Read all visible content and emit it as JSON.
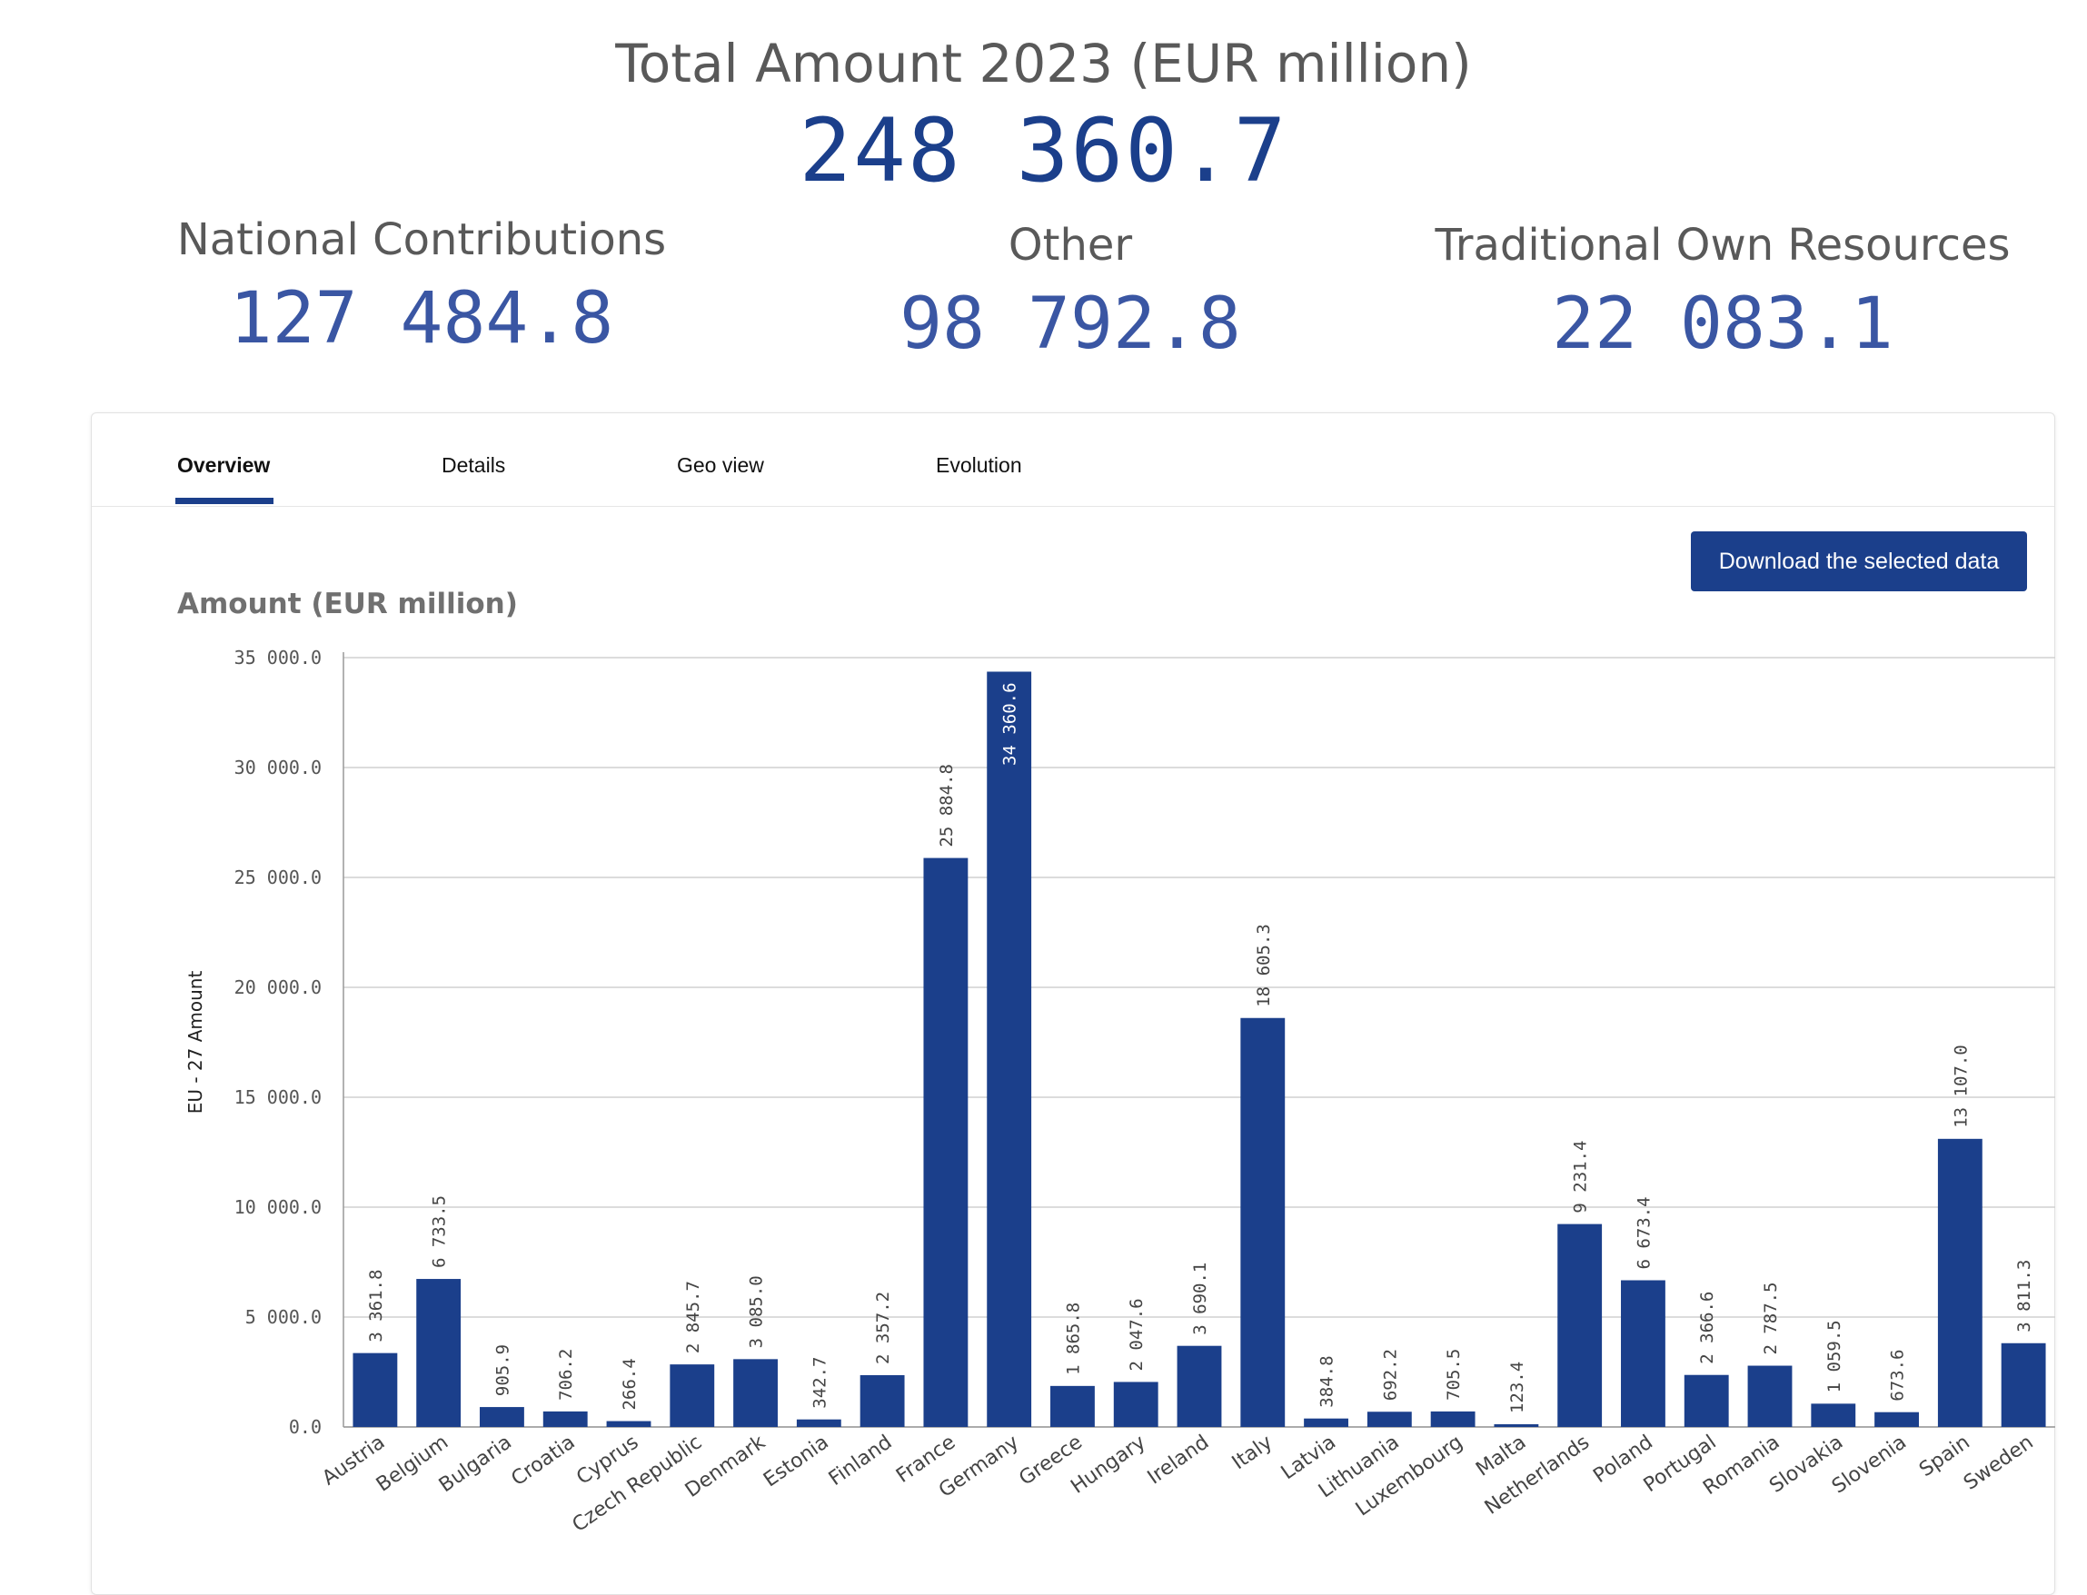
{
  "kpis": {
    "title": "Total Amount 2023 (EUR million)",
    "total": "248 360.7",
    "national": {
      "label": "National Contributions",
      "value": "127 484.8"
    },
    "other": {
      "label": "Other",
      "value": "98 792.8"
    },
    "tor": {
      "label": "Traditional Own Resources",
      "value": "22 083.1"
    }
  },
  "tabs": [
    "Overview",
    "Details",
    "Geo view",
    "Evolution"
  ],
  "active_tab": "Overview",
  "download_label": "Download the selected data",
  "colors": {
    "bar": "#1b3f8b",
    "accent": "#1b3f8b",
    "grid": "#d0d0d0"
  },
  "chart_data": {
    "type": "bar",
    "title": "Amount (EUR million)",
    "ylabel": "EU - 27 Amount",
    "xlabel": "",
    "ylim": [
      0,
      35000
    ],
    "yticks": [
      "0.0",
      "5 000.0",
      "10 000.0",
      "15 000.0",
      "20 000.0",
      "25 000.0",
      "30 000.0",
      "35 000.0"
    ],
    "grid": true,
    "categories": [
      "Austria",
      "Belgium",
      "Bulgaria",
      "Croatia",
      "Cyprus",
      "Czech Republic",
      "Denmark",
      "Estonia",
      "Finland",
      "France",
      "Germany",
      "Greece",
      "Hungary",
      "Ireland",
      "Italy",
      "Latvia",
      "Lithuania",
      "Luxembourg",
      "Malta",
      "Netherlands",
      "Poland",
      "Portugal",
      "Romania",
      "Slovakia",
      "Slovenia",
      "Spain",
      "Sweden"
    ],
    "values": [
      3361.8,
      6733.5,
      905.9,
      706.2,
      266.4,
      2845.7,
      3085.0,
      342.7,
      2357.2,
      25884.8,
      34360.6,
      1865.8,
      2047.6,
      3690.1,
      18605.3,
      384.8,
      692.2,
      705.5,
      123.4,
      9231.4,
      6673.4,
      2366.6,
      2787.5,
      1059.5,
      673.6,
      13107.0,
      3811.3
    ],
    "labels": [
      "3 361.8",
      "6 733.5",
      "905.9",
      "706.2",
      "266.4",
      "2 845.7",
      "3 085.0",
      "342.7",
      "2 357.2",
      "25 884.8",
      "34 360.6",
      "1 865.8",
      "2 047.6",
      "3 690.1",
      "18 605.3",
      "384.8",
      "692.2",
      "705.5",
      "123.4",
      "9 231.4",
      "6 673.4",
      "2 366.6",
      "2 787.5",
      "1 059.5",
      "673.6",
      "13 107.0",
      "3 811.3"
    ]
  }
}
